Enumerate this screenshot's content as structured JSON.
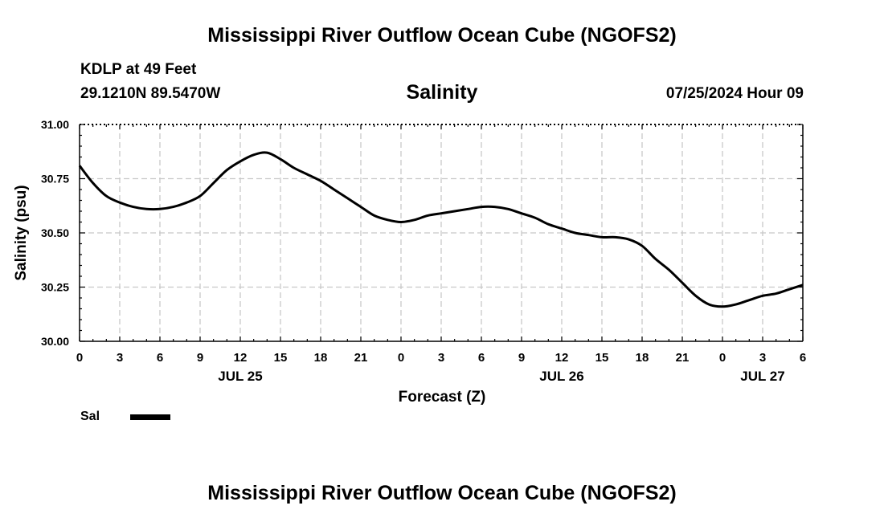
{
  "page_title_top": "Mississippi River Outflow Ocean Cube (NGOFS2)",
  "page_title_bottom": "Mississippi River Outflow Ocean Cube (NGOFS2)",
  "station": "KDLP at 49 Feet",
  "coordinates": "29.1210N  89.5470W",
  "datetime": "07/25/2024 Hour 09",
  "chart_data": {
    "type": "line",
    "title": "Salinity",
    "xlabel": "Forecast (Z)",
    "ylabel": "Salinity (psu)",
    "x_unit": "hours since 2024-07-25 00Z",
    "xlim": [
      0,
      54
    ],
    "ylim": [
      30.0,
      31.0
    ],
    "yticks": [
      30.0,
      30.25,
      30.5,
      30.75,
      31.0
    ],
    "ytick_labels": [
      "30.00",
      "30.25",
      "30.50",
      "30.75",
      "31.00"
    ],
    "xticks": [
      0,
      3,
      6,
      9,
      12,
      15,
      18,
      21,
      24,
      27,
      30,
      33,
      36,
      39,
      42,
      45,
      48,
      51,
      54
    ],
    "xtick_labels": [
      "0",
      "3",
      "6",
      "9",
      "12",
      "15",
      "18",
      "21",
      "0",
      "3",
      "6",
      "9",
      "12",
      "15",
      "18",
      "21",
      "0",
      "3",
      "6"
    ],
    "date_labels": [
      {
        "x": 12,
        "label": "JUL 25"
      },
      {
        "x": 36,
        "label": "JUL 26"
      },
      {
        "x": 51,
        "label": "JUL 27"
      }
    ],
    "grid": true,
    "series": [
      {
        "name": "Sal",
        "color": "#000000",
        "x": [
          0,
          1,
          2,
          3,
          4,
          5,
          6,
          7,
          8,
          9,
          10,
          11,
          12,
          13,
          14,
          15,
          16,
          17,
          18,
          19,
          20,
          21,
          22,
          23,
          24,
          25,
          26,
          27,
          28,
          29,
          30,
          31,
          32,
          33,
          34,
          35,
          36,
          37,
          38,
          39,
          40,
          41,
          42,
          43,
          44,
          45,
          46,
          47,
          48,
          49,
          50,
          51,
          52,
          53,
          54
        ],
        "values": [
          30.81,
          30.73,
          30.67,
          30.64,
          30.62,
          30.61,
          30.61,
          30.62,
          30.64,
          30.67,
          30.73,
          30.79,
          30.83,
          30.86,
          30.87,
          30.84,
          30.8,
          30.77,
          30.74,
          30.7,
          30.66,
          30.62,
          30.58,
          30.56,
          30.55,
          30.56,
          30.58,
          30.59,
          30.6,
          30.61,
          30.62,
          30.62,
          30.61,
          30.59,
          30.57,
          30.54,
          30.52,
          30.5,
          30.49,
          30.48,
          30.48,
          30.47,
          30.44,
          30.38,
          30.33,
          30.27,
          30.21,
          30.17,
          30.16,
          30.17,
          30.19,
          30.21,
          30.22,
          30.24,
          30.26
        ]
      }
    ]
  }
}
